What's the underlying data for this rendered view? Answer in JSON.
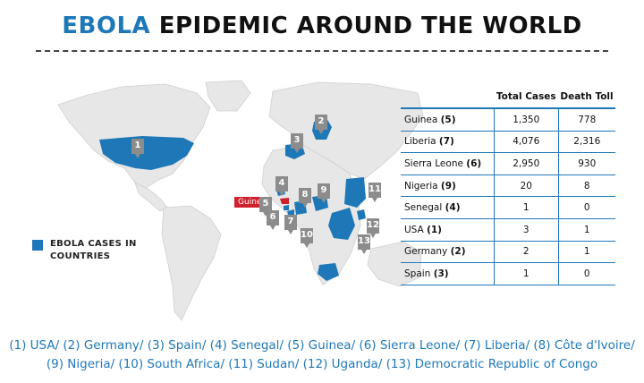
{
  "title": {
    "accent": "EBOLA",
    "rest": " EPIDEMIC AROUND THE WORLD"
  },
  "colors": {
    "accent": "#1e78b8",
    "highlight": "#d0202e",
    "land": "#e7e7e7",
    "pin": "#8c8c8c"
  },
  "map": {
    "guinea_callout": "Guinea",
    "pins": [
      "1",
      "2",
      "3",
      "4",
      "5",
      "6",
      "7",
      "8",
      "9",
      "10",
      "11",
      "12",
      "13"
    ]
  },
  "legend": {
    "label": "EBOLA CASES IN COUNTRIES"
  },
  "table": {
    "headers": [
      "",
      "Total Cases",
      "Death Toll"
    ],
    "rows": [
      {
        "country": "Guinea",
        "num": "(5)",
        "cases": "1,350",
        "deaths": "778"
      },
      {
        "country": "Liberia",
        "num": "(7)",
        "cases": "4,076",
        "deaths": "2,316"
      },
      {
        "country": "Sierra Leone",
        "num": "(6)",
        "cases": "2,950",
        "deaths": "930"
      },
      {
        "country": "Nigeria",
        "num": "(9)",
        "cases": "20",
        "deaths": "8"
      },
      {
        "country": "Senegal",
        "num": "(4)",
        "cases": "1",
        "deaths": "0"
      },
      {
        "country": "USA",
        "num": "(1)",
        "cases": "3",
        "deaths": "1"
      },
      {
        "country": "Germany",
        "num": "(2)",
        "cases": "2",
        "deaths": "1"
      },
      {
        "country": "Spain",
        "num": "(3)",
        "cases": "1",
        "deaths": "0"
      }
    ]
  },
  "footnote": {
    "line1": "(1) USA/ (2) Germany/ (3) Spain/ (4) Senegal/ (5) Guinea/ (6) Sierra Leone/ (7) Liberia/ (8) Côte d'Ivoire/",
    "line2": "(9) Nigeria/ (10) South Africa/ (11) Sudan/ (12) Uganda/ (13) Democratic Republic of Congo"
  }
}
